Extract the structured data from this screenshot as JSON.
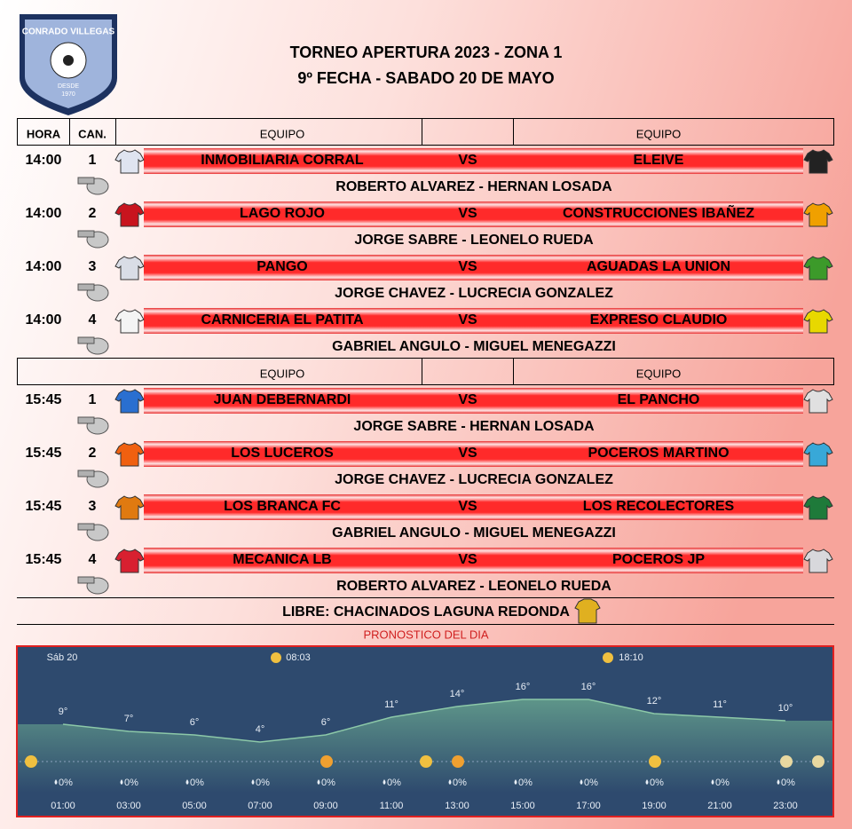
{
  "logo": {
    "name": "CONRADO VILLEGAS",
    "since": "DESDE",
    "year": "1970"
  },
  "header": {
    "title": "TORNEO APERTURA 2023 - ZONA 1",
    "subtitle": "9º FECHA - SABADO 20 DE MAYO"
  },
  "table": {
    "header": {
      "time": "HORA",
      "court": "CAN.",
      "home": "EQUIPO",
      "away": "EQUIPO"
    },
    "second_header": {
      "home": "EQUIPO",
      "away": "EQUIPO"
    },
    "matches": [
      {
        "time": "14:00",
        "court": 1,
        "home": "INMOBILIARIA CORRAL",
        "vs": "VS",
        "away": "ELEIVE",
        "referees": "ROBERTO ALVAREZ - HERNAN LOSADA",
        "home_color": "#dfe4f0",
        "away_color": "#222222"
      },
      {
        "time": "14:00",
        "court": 2,
        "home": "LAGO ROJO",
        "vs": "VS",
        "away": "CONSTRUCCIONES IBAÑEZ",
        "referees": "JORGE SABRE - LEONELO RUEDA",
        "home_color": "#c8141e",
        "away_color": "#f0a000"
      },
      {
        "time": "14:00",
        "court": 3,
        "home": "PANGO",
        "vs": "VS",
        "away": "AGUADAS LA UNION",
        "referees": "JORGE CHAVEZ - LUCRECIA GONZALEZ",
        "home_color": "#d9dde6",
        "away_color": "#3c9a2a"
      },
      {
        "time": "14:00",
        "court": 4,
        "home": "CARNICERIA EL PATITA",
        "vs": "VS",
        "away": "EXPRESO CLAUDIO",
        "referees": "GABRIEL ANGULO - MIGUEL MENEGAZZI",
        "home_color": "#f4f4f4",
        "away_color": "#e8d800"
      },
      {
        "time": "15:45",
        "court": 1,
        "home": "JUAN DEBERNARDI",
        "vs": "VS",
        "away": "EL PANCHO",
        "referees": "JORGE SABRE - HERNAN LOSADA",
        "home_color": "#2a6fd0",
        "away_color": "#e0e0e0"
      },
      {
        "time": "15:45",
        "court": 2,
        "home": "LOS LUCEROS",
        "vs": "VS",
        "away": "POCEROS MARTINO",
        "referees": "JORGE CHAVEZ - LUCRECIA GONZALEZ",
        "home_color": "#f06010",
        "away_color": "#38a8d8"
      },
      {
        "time": "15:45",
        "court": 3,
        "home": "LOS BRANCA FC",
        "vs": "VS",
        "away": "LOS RECOLECTORES",
        "referees": "GABRIEL ANGULO - MIGUEL MENEGAZZI",
        "home_color": "#e07a10",
        "away_color": "#1e7a3a"
      },
      {
        "time": "15:45",
        "court": 4,
        "home": "MECANICA LB",
        "vs": "VS",
        "away": "POCEROS JP",
        "referees": "ROBERTO ALVAREZ - LEONELO RUEDA",
        "home_color": "#d82030",
        "away_color": "#d8d8dc"
      }
    ],
    "bye": "LIBRE: CHACINADOS LAGUNA REDONDA"
  },
  "forecast": {
    "title": "PRONOSTICO DEL DIA",
    "day": "Sáb 20",
    "sunrise": "08:03",
    "sunset": "18:10",
    "hours": [
      "01:00",
      "03:00",
      "05:00",
      "07:00",
      "09:00",
      "11:00",
      "13:00",
      "15:00",
      "17:00",
      "19:00",
      "21:00",
      "23:00"
    ],
    "temperatures": [
      9,
      7,
      6,
      4,
      6,
      11,
      14,
      16,
      16,
      12,
      11,
      10
    ],
    "temperature_labels": [
      "9°",
      "7°",
      "6°",
      "4°",
      "6°",
      "11°",
      "14°",
      "16°",
      "16°",
      "12°",
      "11°",
      "10°"
    ],
    "rain": [
      "0%",
      "0%",
      "0%",
      "0%",
      "0%",
      "0%",
      "0%",
      "0%",
      "0%",
      "0%",
      "0%",
      "0%"
    ]
  }
}
